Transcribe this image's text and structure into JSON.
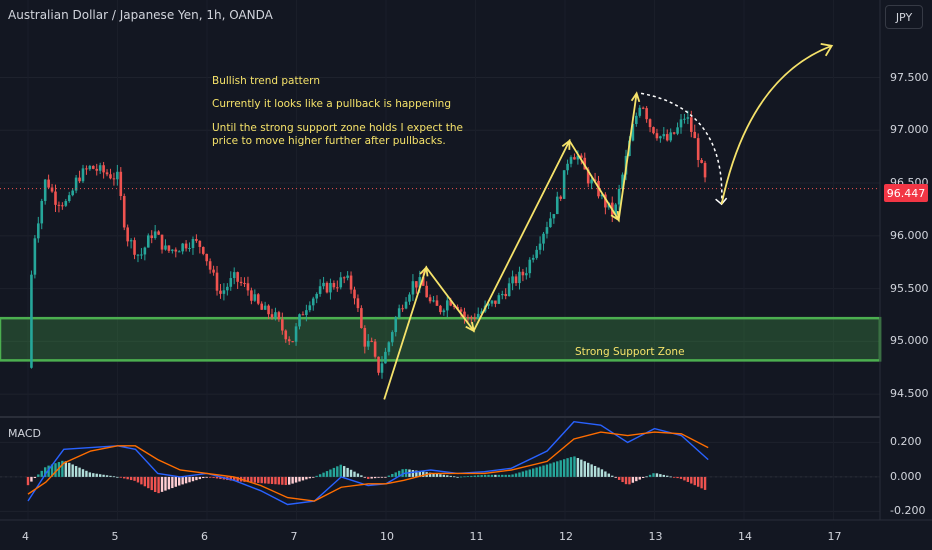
{
  "header": {
    "title": "Australian Dollar / Japanese Yen, 1h, OANDA",
    "currency_button": "JPY"
  },
  "annotations": {
    "line1": "Bullish trend pattern",
    "line2": "Currently it looks like a pullback is happening",
    "line3": "Until the strong support zone holds I expect the price to move higher further after pullbacks.",
    "zone_label": "Strong Support Zone"
  },
  "macd": {
    "label": "MACD"
  },
  "last_price": "96.447",
  "colors": {
    "up": "#26a69a",
    "down": "#ef5350",
    "zone": "#4caf50",
    "annotation": "#f5e26a",
    "macd_line": "#2962ff",
    "signal_line": "#ff6d00"
  },
  "chart_data": [
    {
      "type": "candlestick",
      "symbol": "AUDJPY",
      "y_ticks": [
        "97.500",
        "97.000",
        "96.500",
        "96.000",
        "95.500",
        "95.000",
        "94.500"
      ],
      "x_ticks": [
        "4",
        "5",
        "6",
        "7",
        "10",
        "11",
        "12",
        "13",
        "14",
        "17"
      ],
      "ylim": [
        94.35,
        97.95
      ],
      "last_price": 96.447,
      "support_zone": [
        94.82,
        95.22
      ],
      "close_path": [
        {
          "x": 0,
          "y": 94.75
        },
        {
          "x": 0.05,
          "y": 95.9
        },
        {
          "x": 0.1,
          "y": 96.1
        },
        {
          "x": 0.2,
          "y": 96.55
        },
        {
          "x": 0.3,
          "y": 96.35
        },
        {
          "x": 0.45,
          "y": 96.3
        },
        {
          "x": 0.55,
          "y": 96.55
        },
        {
          "x": 0.7,
          "y": 96.65
        },
        {
          "x": 0.85,
          "y": 96.6
        },
        {
          "x": 1.0,
          "y": 96.55
        },
        {
          "x": 1.1,
          "y": 96.0
        },
        {
          "x": 1.25,
          "y": 95.8
        },
        {
          "x": 1.4,
          "y": 96.05
        },
        {
          "x": 1.55,
          "y": 95.85
        },
        {
          "x": 1.7,
          "y": 95.9
        },
        {
          "x": 1.82,
          "y": 95.95
        },
        {
          "x": 1.95,
          "y": 95.9
        },
        {
          "x": 2.05,
          "y": 95.65
        },
        {
          "x": 2.15,
          "y": 95.45
        },
        {
          "x": 2.3,
          "y": 95.6
        },
        {
          "x": 2.45,
          "y": 95.5
        },
        {
          "x": 2.6,
          "y": 95.3
        },
        {
          "x": 2.75,
          "y": 95.25
        },
        {
          "x": 2.85,
          "y": 95.1
        },
        {
          "x": 2.95,
          "y": 95.0
        },
        {
          "x": 3.05,
          "y": 95.25
        },
        {
          "x": 3.15,
          "y": 95.4
        },
        {
          "x": 3.3,
          "y": 95.5
        },
        {
          "x": 3.45,
          "y": 95.55
        },
        {
          "x": 3.55,
          "y": 95.6
        },
        {
          "x": 3.65,
          "y": 95.45
        },
        {
          "x": 3.75,
          "y": 95.0
        },
        {
          "x": 3.85,
          "y": 94.95
        },
        {
          "x": 3.9,
          "y": 94.7
        },
        {
          "x": 4.0,
          "y": 94.9
        },
        {
          "x": 4.1,
          "y": 95.2
        },
        {
          "x": 4.2,
          "y": 95.4
        },
        {
          "x": 4.3,
          "y": 95.55
        },
        {
          "x": 4.4,
          "y": 95.55
        },
        {
          "x": 4.5,
          "y": 95.35
        },
        {
          "x": 4.6,
          "y": 95.3
        },
        {
          "x": 4.7,
          "y": 95.4
        },
        {
          "x": 4.8,
          "y": 95.35
        },
        {
          "x": 4.9,
          "y": 95.2
        },
        {
          "x": 5.0,
          "y": 95.25
        },
        {
          "x": 5.1,
          "y": 95.3
        },
        {
          "x": 5.25,
          "y": 95.4
        },
        {
          "x": 5.4,
          "y": 95.55
        },
        {
          "x": 5.55,
          "y": 95.65
        },
        {
          "x": 5.7,
          "y": 95.95
        },
        {
          "x": 5.85,
          "y": 96.2
        },
        {
          "x": 5.95,
          "y": 96.4
        },
        {
          "x": 6.05,
          "y": 96.8
        },
        {
          "x": 6.15,
          "y": 96.75
        },
        {
          "x": 6.25,
          "y": 96.55
        },
        {
          "x": 6.35,
          "y": 96.45
        },
        {
          "x": 6.45,
          "y": 96.3
        },
        {
          "x": 6.55,
          "y": 96.2
        },
        {
          "x": 6.65,
          "y": 96.6
        },
        {
          "x": 6.75,
          "y": 97.0
        },
        {
          "x": 6.85,
          "y": 97.3
        },
        {
          "x": 6.95,
          "y": 97.05
        },
        {
          "x": 7.05,
          "y": 96.95
        },
        {
          "x": 7.15,
          "y": 96.9
        },
        {
          "x": 7.25,
          "y": 97.0
        },
        {
          "x": 7.35,
          "y": 97.15
        },
        {
          "x": 7.45,
          "y": 96.9
        },
        {
          "x": 7.55,
          "y": 96.55
        },
        {
          "x": 7.6,
          "y": 96.447
        }
      ]
    },
    {
      "type": "line",
      "title": "MACD",
      "y_ticks": [
        "0.200",
        "0.000",
        "-0.200"
      ],
      "ylim": [
        -0.25,
        0.33
      ],
      "series": [
        {
          "values": [
            {
              "x": 0,
              "y": -0.14
            },
            {
              "x": 0.2,
              "y": 0.02
            },
            {
              "x": 0.4,
              "y": 0.16
            },
            {
              "x": 0.7,
              "y": 0.17
            },
            {
              "x": 1.0,
              "y": 0.18
            },
            {
              "x": 1.2,
              "y": 0.16
            },
            {
              "x": 1.45,
              "y": 0.02
            },
            {
              "x": 1.7,
              "y": 0.0
            },
            {
              "x": 2.0,
              "y": 0.02
            },
            {
              "x": 2.3,
              "y": -0.02
            },
            {
              "x": 2.6,
              "y": -0.08
            },
            {
              "x": 2.9,
              "y": -0.16
            },
            {
              "x": 3.2,
              "y": -0.14
            },
            {
              "x": 3.5,
              "y": 0.0
            },
            {
              "x": 3.8,
              "y": -0.05
            },
            {
              "x": 4.0,
              "y": -0.04
            },
            {
              "x": 4.2,
              "y": 0.02
            },
            {
              "x": 4.5,
              "y": 0.04
            },
            {
              "x": 4.8,
              "y": 0.02
            },
            {
              "x": 5.1,
              "y": 0.03
            },
            {
              "x": 5.4,
              "y": 0.05
            },
            {
              "x": 5.8,
              "y": 0.15
            },
            {
              "x": 6.1,
              "y": 0.32
            },
            {
              "x": 6.4,
              "y": 0.3
            },
            {
              "x": 6.7,
              "y": 0.2
            },
            {
              "x": 7.0,
              "y": 0.28
            },
            {
              "x": 7.3,
              "y": 0.24
            },
            {
              "x": 7.6,
              "y": 0.1
            }
          ]
        },
        {
          "values": [
            {
              "x": 0,
              "y": -0.1
            },
            {
              "x": 0.2,
              "y": -0.03
            },
            {
              "x": 0.4,
              "y": 0.08
            },
            {
              "x": 0.7,
              "y": 0.15
            },
            {
              "x": 1.0,
              "y": 0.18
            },
            {
              "x": 1.2,
              "y": 0.18
            },
            {
              "x": 1.45,
              "y": 0.1
            },
            {
              "x": 1.7,
              "y": 0.04
            },
            {
              "x": 2.0,
              "y": 0.02
            },
            {
              "x": 2.3,
              "y": 0.0
            },
            {
              "x": 2.6,
              "y": -0.05
            },
            {
              "x": 2.9,
              "y": -0.12
            },
            {
              "x": 3.2,
              "y": -0.14
            },
            {
              "x": 3.5,
              "y": -0.06
            },
            {
              "x": 3.8,
              "y": -0.04
            },
            {
              "x": 4.0,
              "y": -0.04
            },
            {
              "x": 4.2,
              "y": -0.02
            },
            {
              "x": 4.5,
              "y": 0.02
            },
            {
              "x": 4.8,
              "y": 0.02
            },
            {
              "x": 5.1,
              "y": 0.02
            },
            {
              "x": 5.4,
              "y": 0.04
            },
            {
              "x": 5.8,
              "y": 0.09
            },
            {
              "x": 6.1,
              "y": 0.22
            },
            {
              "x": 6.4,
              "y": 0.26
            },
            {
              "x": 6.7,
              "y": 0.24
            },
            {
              "x": 7.0,
              "y": 0.26
            },
            {
              "x": 7.3,
              "y": 0.25
            },
            {
              "x": 7.6,
              "y": 0.17
            }
          ]
        }
      ]
    }
  ]
}
